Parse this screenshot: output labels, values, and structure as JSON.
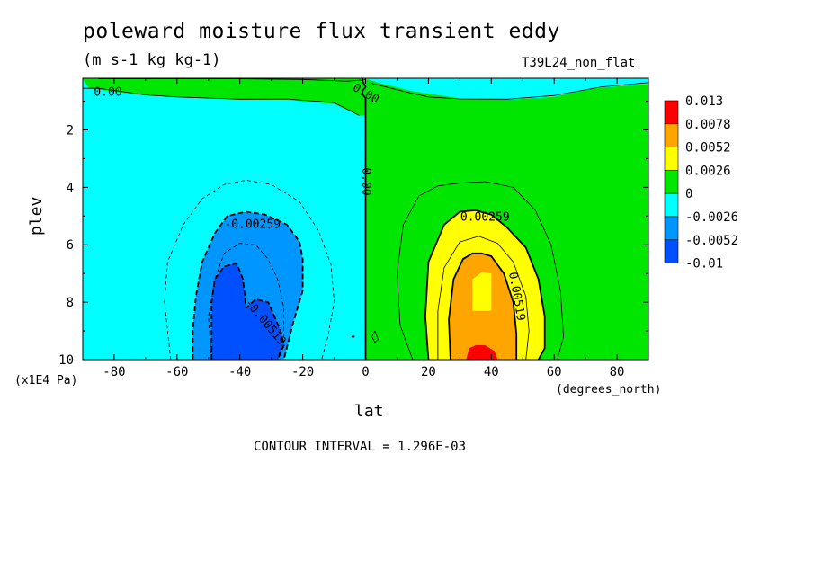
{
  "figure": {
    "title": "poleward moisture flux transient eddy",
    "units": "(m s-1 kg kg-1)",
    "run_label": "T39L24_non_flat",
    "x_label": "lat",
    "x_units": "(degrees_north)",
    "y_label": "plev",
    "y_scale_note": "(x1E4 Pa)",
    "contour_interval": "CONTOUR INTERVAL = 1.296E-03"
  },
  "chart_data": {
    "type": "heatmap",
    "title": "poleward moisture flux transient eddy",
    "xlabel": "lat",
    "ylabel": "plev",
    "xlim": [
      -90,
      90
    ],
    "ylim": [
      10,
      0.2
    ],
    "y_inverted": true,
    "x_ticks": [
      -80,
      -60,
      -40,
      -20,
      0,
      20,
      40,
      60,
      80
    ],
    "x_tick_labels": [
      "-80",
      "-60",
      "-40",
      "-20",
      "0",
      "20",
      "40",
      "60",
      "80"
    ],
    "y_ticks": [
      2,
      4,
      6,
      8,
      10
    ],
    "y_tick_labels": [
      "2",
      "4",
      "6",
      "8",
      "10"
    ],
    "legend": {
      "placement": "right",
      "levels": [
        "0.013",
        "0.0078",
        "0.0052",
        "0.0026",
        "0",
        "-0.0026",
        "-0.0052",
        "-0.01"
      ],
      "colors": [
        "#ff0000",
        "#ffa500",
        "#ffff00",
        "#00e600",
        "#00ffff",
        "#0096ff",
        "#0050ff"
      ]
    },
    "regions": [
      {
        "band": "0 to 0.0026",
        "color": "#00e600",
        "polygon": [
          [
            0,
            0.22
          ],
          [
            90,
            0.22
          ],
          [
            90,
            10
          ],
          [
            0,
            10
          ]
        ]
      },
      {
        "band": "-0.0026 to 0",
        "color": "#00ffff",
        "polygon": [
          [
            -90,
            0.22
          ],
          [
            0,
            0.22
          ],
          [
            0,
            10
          ],
          [
            -90,
            10
          ]
        ]
      },
      {
        "band": "-0.0026 to 0",
        "color": "#00ffff",
        "polygon": [
          [
            -85,
            0.22
          ],
          [
            -25,
            0.22
          ],
          [
            -12,
            0.3
          ],
          [
            -4,
            0.35
          ],
          [
            0,
            0.22
          ],
          [
            5,
            0.38
          ],
          [
            15,
            0.65
          ],
          [
            30,
            0.9
          ],
          [
            45,
            0.95
          ],
          [
            60,
            0.85
          ],
          [
            72,
            0.55
          ],
          [
            90,
            0.4
          ],
          [
            90,
            0.22
          ]
        ]
      },
      {
        "band": "0 to 0.0026",
        "color": "#00e600",
        "polygon": [
          [
            -90,
            0.22
          ],
          [
            -88,
            0.55
          ],
          [
            -70,
            0.8
          ],
          [
            -60,
            0.85
          ],
          [
            -40,
            0.95
          ],
          [
            -25,
            0.95
          ],
          [
            -10,
            1.1
          ],
          [
            -2,
            1.5
          ],
          [
            0,
            1.5
          ],
          [
            0,
            0.2
          ],
          [
            -90,
            0.2
          ]
        ]
      },
      {
        "band": "0.0026 to 0.0052",
        "color": "#ffff00",
        "polygon": [
          [
            20,
            10
          ],
          [
            19,
            8.5
          ],
          [
            20,
            6.6
          ],
          [
            25,
            5.3
          ],
          [
            30,
            4.85
          ],
          [
            35,
            4.8
          ],
          [
            40,
            4.95
          ],
          [
            45,
            5.4
          ],
          [
            51,
            6.1
          ],
          [
            55,
            7.2
          ],
          [
            57,
            8.5
          ],
          [
            57,
            9.6
          ],
          [
            55,
            10
          ]
        ]
      },
      {
        "band": "0.0052 to 0.0078",
        "color": "#ffa500",
        "polygon": [
          [
            27,
            10
          ],
          [
            26.5,
            8.6
          ],
          [
            28,
            7.2
          ],
          [
            31,
            6.5
          ],
          [
            34,
            6.3
          ],
          [
            37,
            6.3
          ],
          [
            40,
            6.4
          ],
          [
            44,
            7.0
          ],
          [
            47,
            8.0
          ],
          [
            48,
            9.1
          ],
          [
            48,
            10
          ]
        ]
      },
      {
        "band": "0.0026 to 0.0052",
        "color": "#ffff00",
        "polygon": [
          [
            34,
            8.3
          ],
          [
            40,
            8.3
          ],
          [
            40,
            7.0
          ],
          [
            37,
            6.95
          ],
          [
            34,
            7.2
          ]
        ]
      },
      {
        "band": "0.0078 to 0.013",
        "color": "#ff0000",
        "polygon": [
          [
            32,
            10
          ],
          [
            33,
            9.6
          ],
          [
            35,
            9.5
          ],
          [
            38,
            9.5
          ],
          [
            41,
            9.7
          ],
          [
            42,
            10
          ]
        ]
      },
      {
        "band": "-0.0052 to -0.0026",
        "color": "#0096ff",
        "polygon": [
          [
            -55,
            10
          ],
          [
            -55,
            9.0
          ],
          [
            -54,
            7.8
          ],
          [
            -52,
            6.6
          ],
          [
            -48,
            5.6
          ],
          [
            -44,
            5.0
          ],
          [
            -38,
            4.85
          ],
          [
            -32,
            4.95
          ],
          [
            -25,
            5.3
          ],
          [
            -21,
            5.9
          ],
          [
            -20,
            6.5
          ],
          [
            -20,
            7.6
          ],
          [
            -23,
            8.7
          ],
          [
            -26,
            10
          ]
        ]
      },
      {
        "band": "-0.01 to -0.0052",
        "color": "#0050ff",
        "polygon": [
          [
            -49,
            10
          ],
          [
            -49,
            8.0
          ],
          [
            -48,
            7.2
          ],
          [
            -45,
            6.75
          ],
          [
            -41,
            6.65
          ],
          [
            -39,
            7.2
          ],
          [
            -38,
            8.2
          ],
          [
            -35,
            7.9
          ],
          [
            -31,
            8.0
          ],
          [
            -27,
            9.0
          ],
          [
            -26,
            9.5
          ],
          [
            -28,
            10
          ]
        ]
      }
    ],
    "contours": [
      {
        "level": 0.0,
        "style": "solid",
        "thick": true,
        "points": [
          [
            -1,
            0.22
          ],
          [
            -1,
            0.3
          ],
          [
            0,
            0.5
          ],
          [
            -1,
            0.65
          ],
          [
            -1,
            0.75
          ],
          [
            0,
            0.9
          ],
          [
            0,
            10
          ]
        ]
      },
      {
        "level": 0.0,
        "style": "solid",
        "thick": false,
        "points": [
          [
            -90,
            0.55
          ],
          [
            -85,
            0.55
          ],
          [
            -70,
            0.78
          ],
          [
            -60,
            0.85
          ],
          [
            -40,
            0.93
          ],
          [
            -25,
            0.92
          ],
          [
            -10,
            1.05
          ],
          [
            -2,
            1.5
          ]
        ]
      },
      {
        "level": 0.0,
        "style": "solid",
        "thick": false,
        "points": [
          [
            2,
            0.38
          ],
          [
            10,
            0.6
          ],
          [
            20,
            0.85
          ],
          [
            30,
            0.92
          ],
          [
            45,
            0.93
          ],
          [
            60,
            0.8
          ],
          [
            75,
            0.5
          ],
          [
            90,
            0.35
          ]
        ]
      },
      {
        "level": 0.0,
        "style": "solid",
        "thick": false,
        "points": [
          [
            -85,
            0.22
          ],
          [
            -40,
            0.22
          ],
          [
            -20,
            0.24
          ],
          [
            -6,
            0.3
          ],
          [
            0,
            0.25
          ]
        ]
      },
      {
        "level": -0.0013,
        "style": "dashed",
        "thick": false,
        "points": [
          [
            -62,
            10
          ],
          [
            -64,
            8.0
          ],
          [
            -63,
            6.6
          ],
          [
            -58,
            5.3
          ],
          [
            -52,
            4.4
          ],
          [
            -45,
            3.9
          ],
          [
            -38,
            3.75
          ],
          [
            -30,
            3.9
          ],
          [
            -21,
            4.5
          ],
          [
            -15,
            5.5
          ],
          [
            -11,
            6.7
          ],
          [
            -10,
            8.0
          ],
          [
            -12,
            9.2
          ],
          [
            -14,
            10
          ]
        ]
      },
      {
        "level": -0.00259,
        "style": "dashed",
        "thick": true,
        "points": [
          [
            -55,
            10
          ],
          [
            -55,
            9.0
          ],
          [
            -54,
            7.8
          ],
          [
            -52,
            6.6
          ],
          [
            -48,
            5.6
          ],
          [
            -44,
            5.0
          ],
          [
            -38,
            4.85
          ],
          [
            -32,
            4.95
          ],
          [
            -25,
            5.3
          ],
          [
            -21,
            5.9
          ],
          [
            -20,
            6.5
          ],
          [
            -20,
            7.6
          ],
          [
            -23,
            8.7
          ],
          [
            -26,
            10
          ]
        ]
      },
      {
        "level": -0.0039,
        "style": "dashed",
        "thick": false,
        "points": [
          [
            -49,
            10
          ],
          [
            -50,
            8.5
          ],
          [
            -48,
            7.2
          ],
          [
            -45,
            6.3
          ],
          [
            -40,
            5.95
          ],
          [
            -35,
            6.0
          ],
          [
            -31,
            6.5
          ],
          [
            -28,
            7.2
          ],
          [
            -26,
            8.2
          ],
          [
            -26,
            9.2
          ],
          [
            -28,
            10
          ]
        ]
      },
      {
        "level": -0.00519,
        "style": "dashed",
        "thick": true,
        "points": [
          [
            -49,
            10
          ],
          [
            -49,
            8.0
          ],
          [
            -48,
            7.2
          ],
          [
            -45,
            6.75
          ],
          [
            -41,
            6.65
          ],
          [
            -39,
            7.2
          ],
          [
            -38,
            8.2
          ],
          [
            -35,
            7.9
          ],
          [
            -31,
            8.0
          ],
          [
            -27,
            9.0
          ],
          [
            -26,
            9.5
          ],
          [
            -28,
            10
          ]
        ]
      },
      {
        "level": 0.0013,
        "style": "solid",
        "thick": false,
        "points": [
          [
            15,
            10
          ],
          [
            11,
            8.8
          ],
          [
            10,
            7.0
          ],
          [
            12,
            5.3
          ],
          [
            17,
            4.3
          ],
          [
            23,
            3.95
          ],
          [
            30,
            3.85
          ],
          [
            38,
            3.8
          ],
          [
            47,
            4.0
          ],
          [
            54,
            4.8
          ],
          [
            59,
            6.0
          ],
          [
            62,
            7.6
          ],
          [
            63,
            9.2
          ],
          [
            61,
            10
          ]
        ]
      },
      {
        "level": 0.00259,
        "style": "solid",
        "thick": true,
        "points": [
          [
            20,
            10
          ],
          [
            19,
            8.5
          ],
          [
            20,
            6.6
          ],
          [
            25,
            5.3
          ],
          [
            30,
            4.85
          ],
          [
            35,
            4.8
          ],
          [
            40,
            4.95
          ],
          [
            45,
            5.4
          ],
          [
            51,
            6.1
          ],
          [
            55,
            7.2
          ],
          [
            57,
            8.5
          ],
          [
            57,
            9.6
          ],
          [
            55,
            10
          ]
        ]
      },
      {
        "level": 0.0039,
        "style": "solid",
        "thick": false,
        "points": [
          [
            23,
            10
          ],
          [
            23,
            8.3
          ],
          [
            25,
            6.8
          ],
          [
            30,
            5.9
          ],
          [
            36,
            5.7
          ],
          [
            42,
            5.95
          ],
          [
            47,
            6.6
          ],
          [
            51,
            7.8
          ],
          [
            52,
            9.0
          ],
          [
            51,
            10
          ]
        ]
      },
      {
        "level": 0.00519,
        "style": "solid",
        "thick": true,
        "points": [
          [
            27,
            10
          ],
          [
            26.5,
            8.6
          ],
          [
            28,
            7.2
          ],
          [
            31,
            6.5
          ],
          [
            34,
            6.3
          ],
          [
            37,
            6.3
          ],
          [
            40,
            6.4
          ],
          [
            44,
            7.0
          ],
          [
            47,
            8.0
          ],
          [
            48,
            9.1
          ],
          [
            48,
            10
          ]
        ]
      },
      {
        "level": 0.0,
        "style": "solid",
        "thick": false,
        "points": [
          [
            3,
            9.0
          ],
          [
            2,
            9.2
          ],
          [
            3,
            9.4
          ],
          [
            4,
            9.3
          ],
          [
            3,
            9.0
          ]
        ]
      },
      {
        "level": 0.0,
        "style": "solid",
        "thick": true,
        "points": [
          [
            -4.5,
            9.2
          ],
          [
            -3.5,
            9.2
          ]
        ]
      }
    ],
    "contour_labels": [
      {
        "text": "0.00",
        "x": -82,
        "y": 0.7,
        "angle": 0
      },
      {
        "text": "0.00",
        "x": 0,
        "y": 0.75,
        "angle": 30
      },
      {
        "text": "0.00",
        "x": 0,
        "y": 3.8,
        "angle": 90
      },
      {
        "text": "-0.00259",
        "x": -36,
        "y": 5.3,
        "angle": 0
      },
      {
        "text": "-0.00519",
        "x": -32,
        "y": 8.7,
        "angle": 50
      },
      {
        "text": "0.00259",
        "x": 38,
        "y": 5.05,
        "angle": 0
      },
      {
        "text": "0.00519",
        "x": 48,
        "y": 7.8,
        "angle": 80
      }
    ]
  }
}
